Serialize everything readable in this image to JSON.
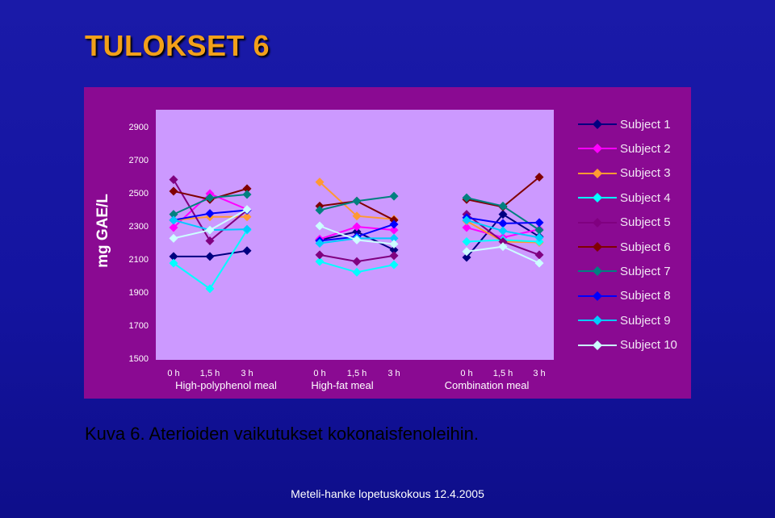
{
  "slide": {
    "title": "TULOKSET 6",
    "caption": "Kuva 6. Aterioiden vaikutukset kokonaisfenoleihin.",
    "footer": "Meteli-hanke lopetuskokous 12.4.2005"
  },
  "chart_data": {
    "type": "line",
    "ylabel": "mg GAE/L",
    "ylim": [
      1500,
      2900
    ],
    "yticks": [
      1500,
      1700,
      1900,
      2100,
      2300,
      2500,
      2700,
      2900
    ],
    "grid": false,
    "legend_position": "right",
    "groups": [
      {
        "label": "High-polyphenol meal",
        "times": [
          "0 h",
          "1,5 h",
          "3 h"
        ]
      },
      {
        "label": "High-fat meal",
        "times": [
          "0 h",
          "1,5 h",
          "3 h"
        ]
      },
      {
        "label": "Combination meal",
        "times": [
          "0 h",
          "1,5 h",
          "3 h"
        ]
      }
    ],
    "series": [
      {
        "name": "Subject 1",
        "color": "#000080",
        "values": [
          [
            2115,
            2115,
            2150
          ],
          [
            2215,
            2265,
            2155
          ],
          [
            2110,
            2370,
            2235
          ]
        ]
      },
      {
        "name": "Subject 2",
        "color": "#ff00ff",
        "values": [
          [
            2290,
            2495,
            2400
          ],
          [
            2220,
            2295,
            2275
          ],
          [
            2290,
            2230,
            2280
          ]
        ]
      },
      {
        "name": "Subject 3",
        "color": "#ff9933",
        "values": [
          [
            2335,
            2355,
            2355
          ],
          [
            2565,
            2360,
            2340
          ],
          [
            2330,
            2205,
            2200
          ]
        ]
      },
      {
        "name": "Subject 4",
        "color": "#00ffff",
        "values": [
          [
            2075,
            1920,
            2275
          ],
          [
            2085,
            2020,
            2065
          ],
          [
            2205,
            2215,
            2205
          ]
        ]
      },
      {
        "name": "Subject 5",
        "color": "#800080",
        "values": [
          [
            2580,
            2210,
            2395
          ],
          [
            2125,
            2085,
            2120
          ],
          [
            2370,
            2205,
            2125
          ]
        ]
      },
      {
        "name": "Subject 6",
        "color": "#800000",
        "values": [
          [
            2510,
            2460,
            2525
          ],
          [
            2420,
            2450,
            2335
          ],
          [
            2460,
            2415,
            2595
          ]
        ]
      },
      {
        "name": "Subject 7",
        "color": "#008080",
        "values": [
          [
            2370,
            2470,
            2490
          ],
          [
            2395,
            2450,
            2480
          ],
          [
            2470,
            2420,
            2275
          ]
        ]
      },
      {
        "name": "Subject 8",
        "color": "#0000ff",
        "values": [
          [
            2335,
            2375,
            2395
          ],
          [
            2210,
            2235,
            2310
          ],
          [
            2350,
            2315,
            2320
          ]
        ]
      },
      {
        "name": "Subject 9",
        "color": "#00ccff",
        "values": [
          [
            2335,
            2275,
            2280
          ],
          [
            2195,
            2225,
            2225
          ],
          [
            2335,
            2270,
            2230
          ]
        ]
      },
      {
        "name": "Subject 10",
        "color": "#ccffff",
        "values": [
          [
            2225,
            2275,
            2400
          ],
          [
            2300,
            2215,
            2190
          ],
          [
            2145,
            2175,
            2075
          ]
        ]
      }
    ]
  }
}
